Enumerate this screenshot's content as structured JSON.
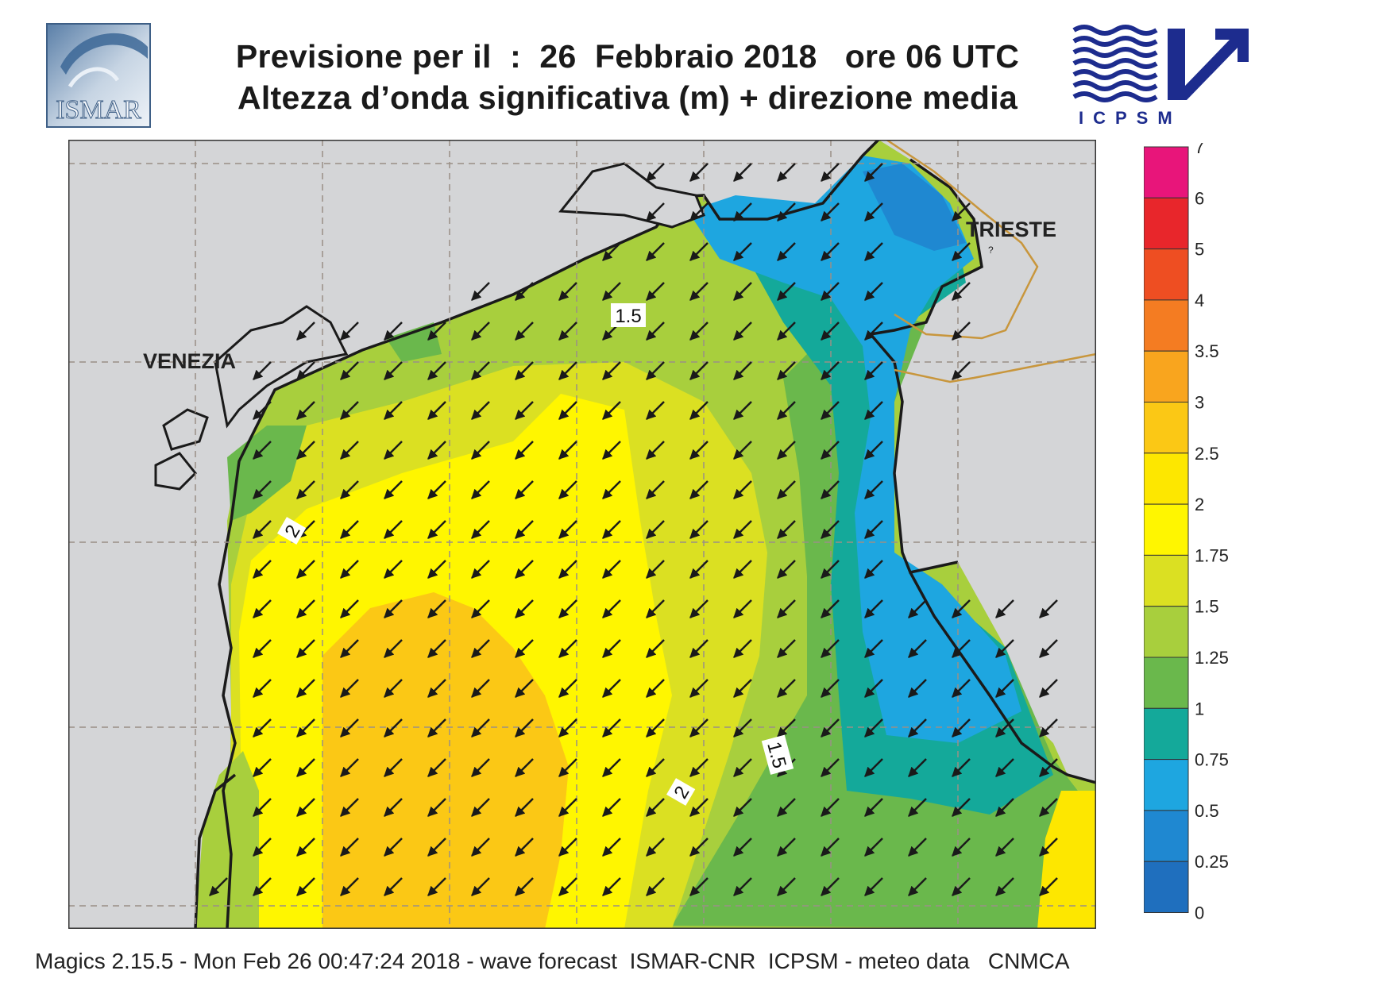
{
  "header": {
    "title_line1": "Previsione per il  :  26  Febbraio 2018   ore 06 UTC",
    "title_line2": "Altezza d’onda significativa (m) + direzione media"
  },
  "logos": {
    "left": {
      "text": "ISMAR",
      "icon": "ismar-logo-icon"
    },
    "right": {
      "text": "ICPSM",
      "icon": "icpsm-waves-arrow-icon"
    }
  },
  "map": {
    "cities": [
      {
        "name": "VENEZIA"
      },
      {
        "name": "TRIESTE"
      }
    ],
    "contour_labels": [
      "1.5",
      "2",
      "2",
      "1.5"
    ],
    "colors": {
      "land": "#d4d5d7",
      "coastline": "#1a1a1a",
      "border": "#c8963c",
      "grid": "#9a8f86",
      "arrow": "#1a1a1a"
    }
  },
  "legend": {
    "levels": [
      "7",
      "6",
      "5",
      "4",
      "3.5",
      "3",
      "2.5",
      "2",
      "1.75",
      "1.5",
      "1.25",
      "1",
      "0.75",
      "0.5",
      "0.25",
      "0"
    ],
    "colors": [
      "#e8157a",
      "#e8262b",
      "#ee4e22",
      "#f47c22",
      "#f9a51e",
      "#fbc815",
      "#fde700",
      "#fff600",
      "#dbe022",
      "#a8cf3d",
      "#6ab84c",
      "#14a99a",
      "#1ea6e0",
      "#1f88d1",
      "#1f6fbe",
      "#1f5aa8"
    ]
  },
  "footer": {
    "text": "Magics 2.15.5 - Mon Feb 26 00:47:24 2018 - wave forecast  ISMAR-CNR  ICPSM - meteo data   CNMCA"
  }
}
